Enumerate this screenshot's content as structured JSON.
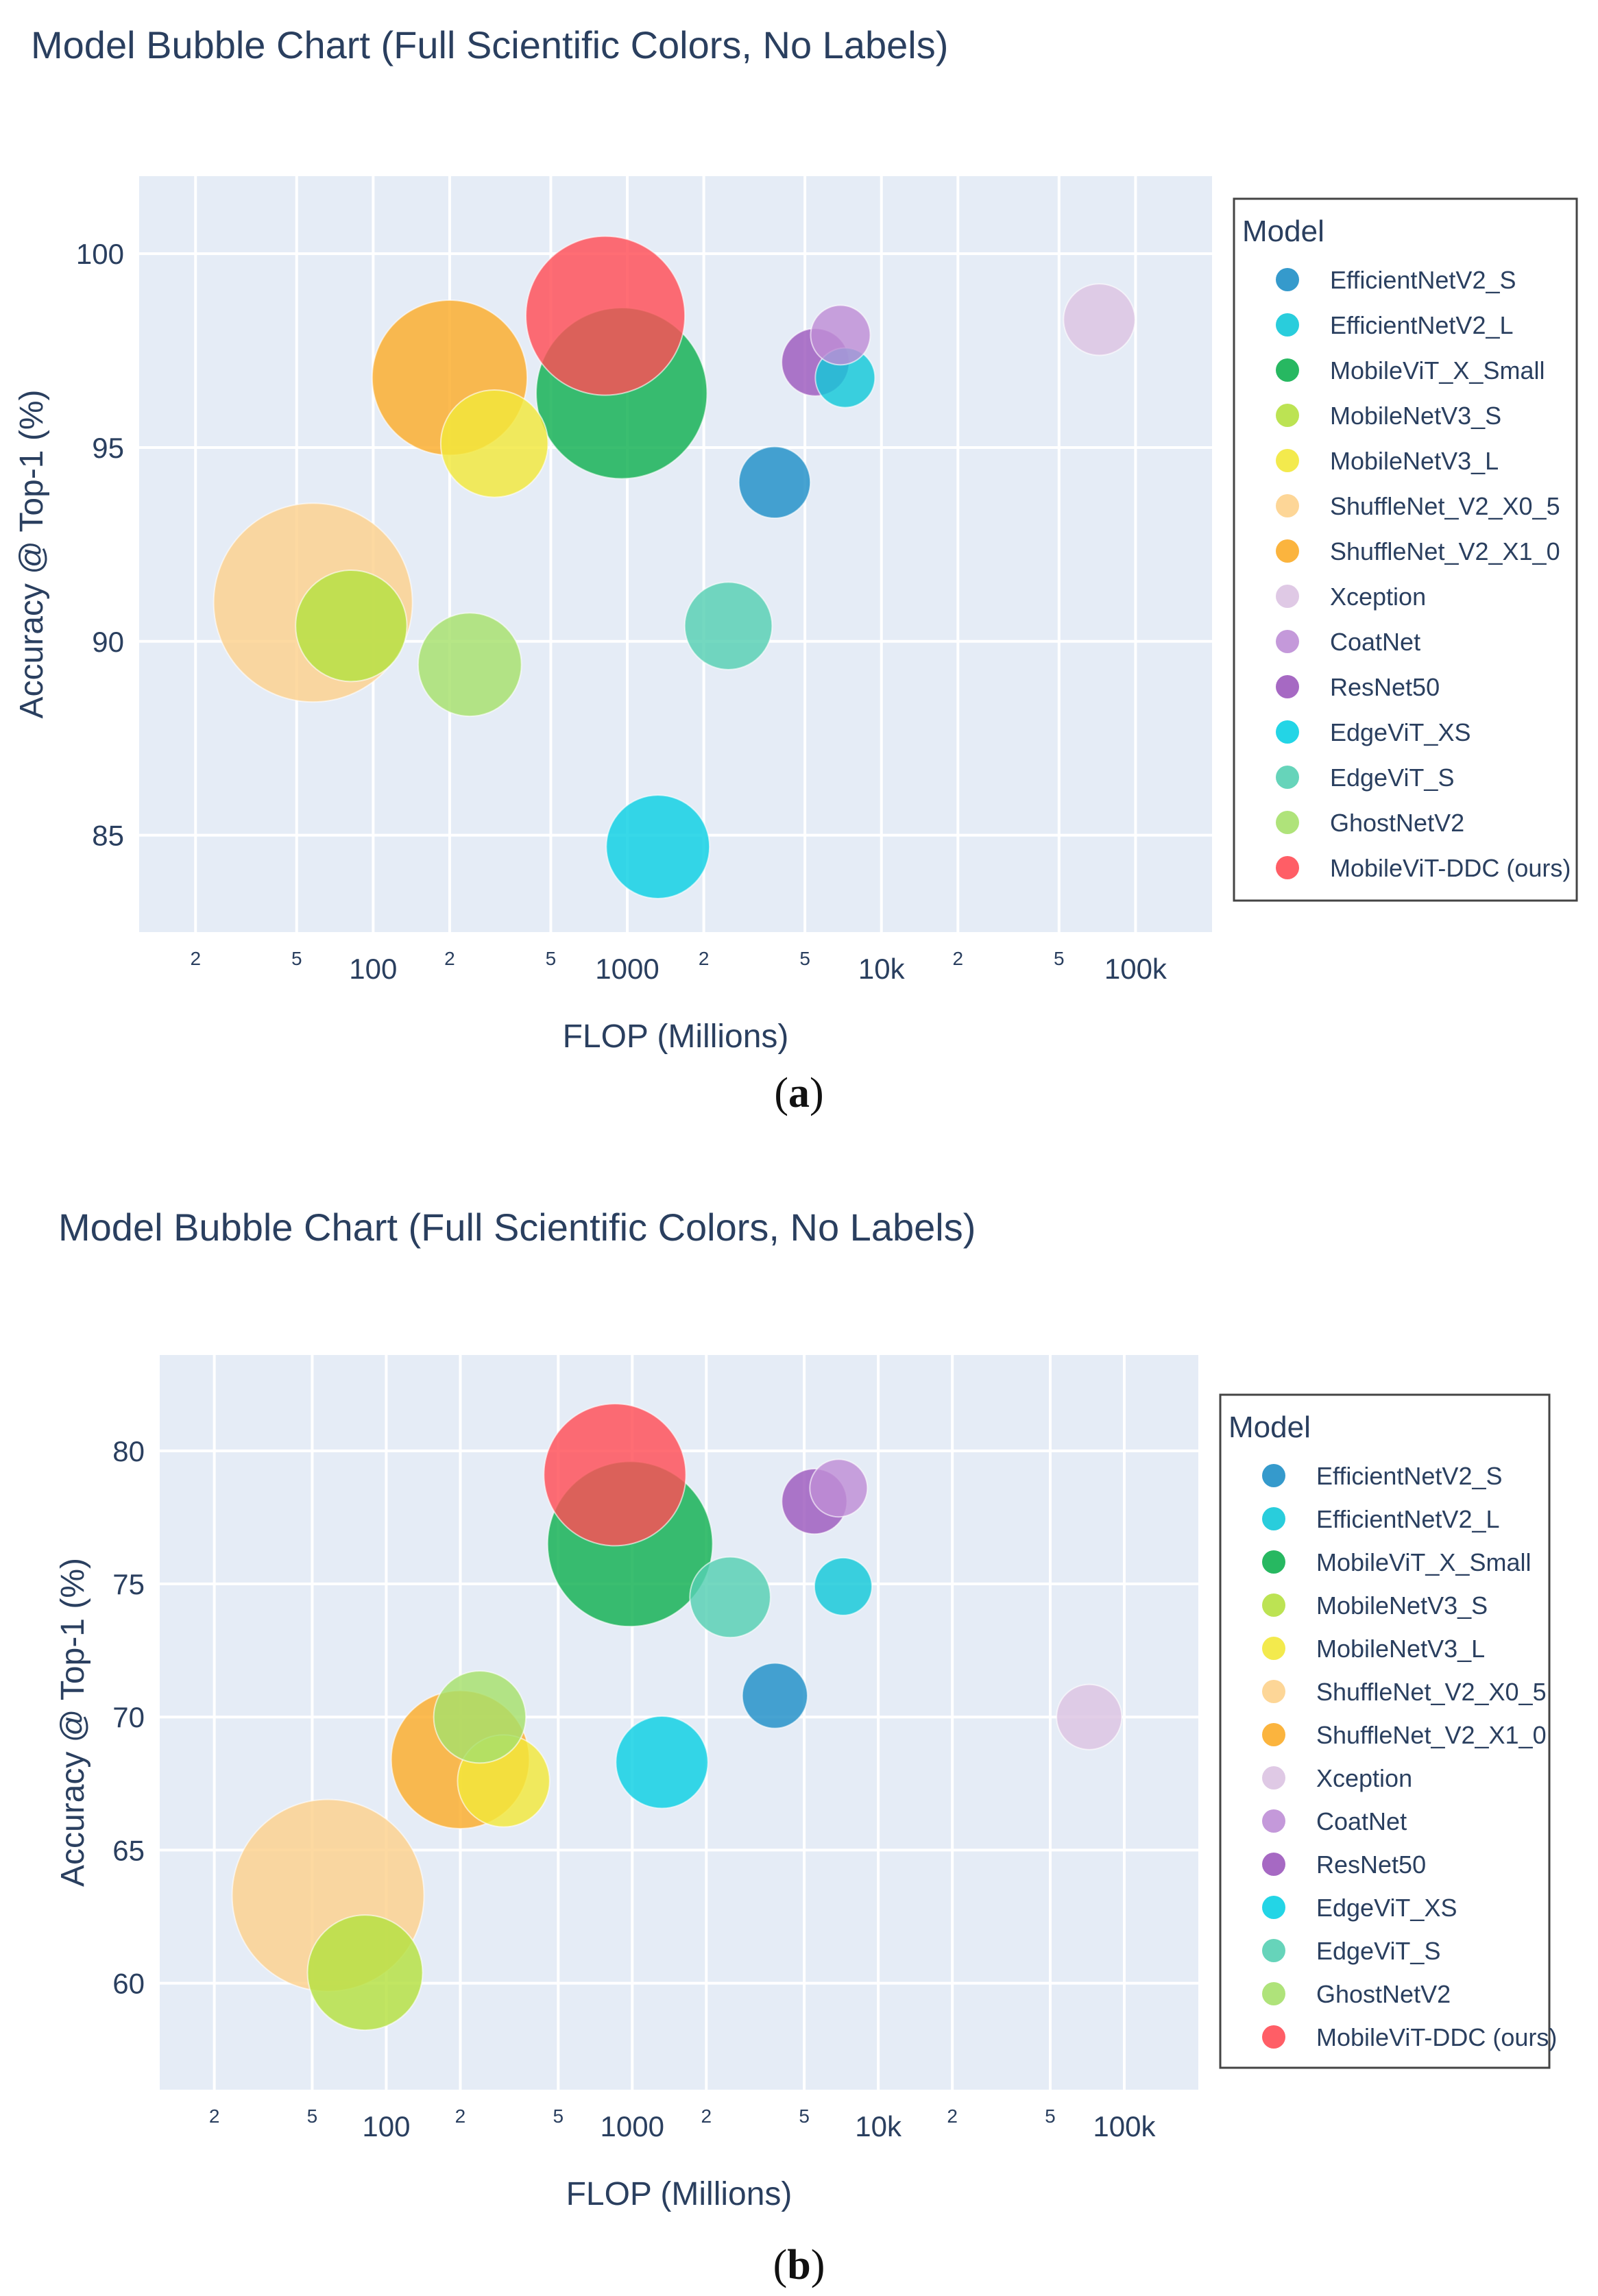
{
  "captions": {
    "a_open": "(",
    "a_letter": "a",
    "a_close": ")",
    "b_open": "(",
    "b_letter": "b",
    "b_close": ")"
  },
  "chart_data": [
    {
      "type": "scatter",
      "subtype": "bubble",
      "title": "Model Bubble Chart (Full Scientific Colors, No Labels)",
      "xlabel": "FLOP (Millions)",
      "ylabel": "Accuracy @ Top-1 (%)",
      "xscale": "log",
      "xlim": [
        12,
        200000
      ],
      "ylim": [
        82.5,
        102
      ],
      "yticks": [
        85,
        90,
        95,
        100
      ],
      "xticks": [
        {
          "v": 20,
          "label": "2"
        },
        {
          "v": 50,
          "label": "5"
        },
        {
          "v": 100,
          "label": "100"
        },
        {
          "v": 200,
          "label": "2"
        },
        {
          "v": 500,
          "label": "5"
        },
        {
          "v": 1000,
          "label": "1000"
        },
        {
          "v": 2000,
          "label": "2"
        },
        {
          "v": 5000,
          "label": "5"
        },
        {
          "v": 10000,
          "label": "10k"
        },
        {
          "v": 20000,
          "label": "2"
        },
        {
          "v": 50000,
          "label": "5"
        },
        {
          "v": 100000,
          "label": "100k"
        }
      ],
      "legend_title": "Model",
      "legend_position": "right",
      "grid": true,
      "series": [
        {
          "name": "EfficientNetV2_S",
          "color": "#1f8fc7",
          "x": 3800,
          "y": 94.1,
          "size": 0.36
        },
        {
          "name": "EfficientNetV2_L",
          "color": "#12c8d8",
          "x": 7200,
          "y": 96.8,
          "size": 0.3
        },
        {
          "name": "MobileViT_X_Small",
          "color": "#10b050",
          "x": 950,
          "y": 96.4,
          "size": 0.86
        },
        {
          "name": "MobileNetV3_S",
          "color": "#b5e040",
          "x": 82,
          "y": 90.4,
          "size": 0.56
        },
        {
          "name": "MobileNetV3_L",
          "color": "#f2e83a",
          "x": 300,
          "y": 95.1,
          "size": 0.54
        },
        {
          "name": "ShuffleNet_V2_X0_5",
          "color": "#fdd18c",
          "x": 58,
          "y": 91.0,
          "size": 1.0
        },
        {
          "name": "ShuffleNet_V2_X1_0",
          "color": "#fbac29",
          "x": 200,
          "y": 96.8,
          "size": 0.78
        },
        {
          "name": "Xception",
          "color": "#dcc3e2",
          "x": 72000,
          "y": 98.3,
          "size": 0.36
        },
        {
          "name": "CoatNet",
          "color": "#be8ed6",
          "x": 6900,
          "y": 97.9,
          "size": 0.3
        },
        {
          "name": "ResNet50",
          "color": "#9c59bd",
          "x": 5500,
          "y": 97.2,
          "size": 0.34
        },
        {
          "name": "EdgeViT_XS",
          "color": "#0bd0e3",
          "x": 1320,
          "y": 84.7,
          "size": 0.52
        },
        {
          "name": "EdgeViT_S",
          "color": "#55cfb2",
          "x": 2500,
          "y": 90.4,
          "size": 0.44
        },
        {
          "name": "GhostNetV2",
          "color": "#a6e06b",
          "x": 240,
          "y": 89.4,
          "size": 0.52
        },
        {
          "name": "MobileViT-DDC (ours)",
          "color": "#ff4d55",
          "x": 820,
          "y": 98.4,
          "size": 0.8
        }
      ]
    },
    {
      "type": "scatter",
      "subtype": "bubble",
      "title": "Model Bubble Chart (Full Scientific Colors, No Labels)",
      "xlabel": "FLOP (Millions)",
      "ylabel": "Accuracy @ Top-1 (%)",
      "xscale": "log",
      "xlim": [
        12,
        200000
      ],
      "ylim": [
        56,
        83.6
      ],
      "yticks": [
        60,
        65,
        70,
        75,
        80
      ],
      "xticks": [
        {
          "v": 20,
          "label": "2"
        },
        {
          "v": 50,
          "label": "5"
        },
        {
          "v": 100,
          "label": "100"
        },
        {
          "v": 200,
          "label": "2"
        },
        {
          "v": 500,
          "label": "5"
        },
        {
          "v": 1000,
          "label": "1000"
        },
        {
          "v": 2000,
          "label": "2"
        },
        {
          "v": 5000,
          "label": "5"
        },
        {
          "v": 10000,
          "label": "10k"
        },
        {
          "v": 20000,
          "label": "2"
        },
        {
          "v": 50000,
          "label": "5"
        },
        {
          "v": 100000,
          "label": "100k"
        }
      ],
      "legend_title": "Model",
      "legend_position": "right",
      "grid": true,
      "series": [
        {
          "name": "EfficientNetV2_S",
          "color": "#1f8fc7",
          "x": 3800,
          "y": 70.8,
          "size": 0.34
        },
        {
          "name": "EfficientNetV2_L",
          "color": "#12c8d8",
          "x": 7200,
          "y": 74.9,
          "size": 0.3
        },
        {
          "name": "MobileViT_X_Small",
          "color": "#10b050",
          "x": 980,
          "y": 76.5,
          "size": 0.86
        },
        {
          "name": "MobileNetV3_S",
          "color": "#b5e040",
          "x": 82,
          "y": 60.4,
          "size": 0.6
        },
        {
          "name": "MobileNetV3_L",
          "color": "#f2e83a",
          "x": 300,
          "y": 67.6,
          "size": 0.48
        },
        {
          "name": "ShuffleNet_V2_X0_5",
          "color": "#fdd18c",
          "x": 58,
          "y": 63.3,
          "size": 1.0
        },
        {
          "name": "ShuffleNet_V2_X1_0",
          "color": "#fbac29",
          "x": 200,
          "y": 68.4,
          "size": 0.72
        },
        {
          "name": "Xception",
          "color": "#dcc3e2",
          "x": 72000,
          "y": 70.0,
          "size": 0.34
        },
        {
          "name": "CoatNet",
          "color": "#be8ed6",
          "x": 6900,
          "y": 78.6,
          "size": 0.3
        },
        {
          "name": "ResNet50",
          "color": "#9c59bd",
          "x": 5500,
          "y": 78.1,
          "size": 0.34
        },
        {
          "name": "EdgeViT_XS",
          "color": "#0bd0e3",
          "x": 1320,
          "y": 68.3,
          "size": 0.48
        },
        {
          "name": "EdgeViT_S",
          "color": "#55cfb2",
          "x": 2500,
          "y": 74.5,
          "size": 0.42
        },
        {
          "name": "GhostNetV2",
          "color": "#a6e06b",
          "x": 240,
          "y": 70.0,
          "size": 0.48
        },
        {
          "name": "MobileViT-DDC (ours)",
          "color": "#ff4d55",
          "x": 850,
          "y": 79.1,
          "size": 0.74
        }
      ]
    }
  ]
}
